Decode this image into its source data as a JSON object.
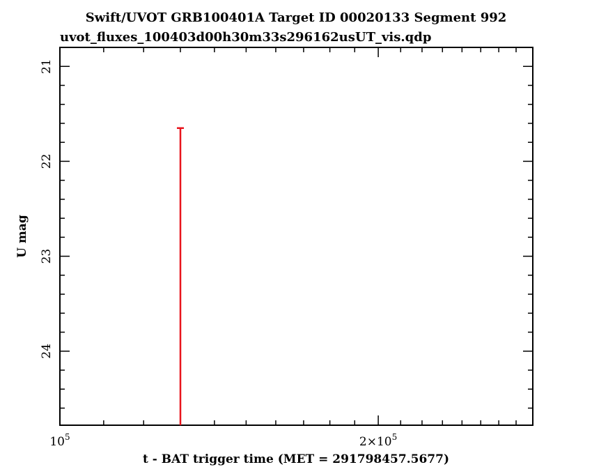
{
  "chart_data": {
    "type": "scatter",
    "title": "Swift/UVOT GRB100401A Target ID 00020133 Segment 992",
    "subtitle": "uvot_fluxes_100403d00h30m33s296162usUT_vis.qdp",
    "xlabel": "t - BAT trigger time (MET = 291798457.5677)",
    "ylabel": "U mag",
    "x_scale": "log",
    "xlim": [
      100000,
      280000
    ],
    "ylim": [
      24.78,
      20.8
    ],
    "y_inverted": true,
    "x_ticks": [
      {
        "value": 100000,
        "mantissa": "10",
        "exponent": "5"
      },
      {
        "value": 200000,
        "mantissa": "2×10",
        "exponent": "5"
      }
    ],
    "y_ticks": [
      {
        "value": 21,
        "label": "21"
      },
      {
        "value": 22,
        "label": "22"
      },
      {
        "value": 23,
        "label": "23"
      },
      {
        "value": 24,
        "label": "24"
      }
    ],
    "points": [
      {
        "x": 130000,
        "y": 21.65,
        "upper_limit": true,
        "color": "#e8141c"
      }
    ]
  }
}
